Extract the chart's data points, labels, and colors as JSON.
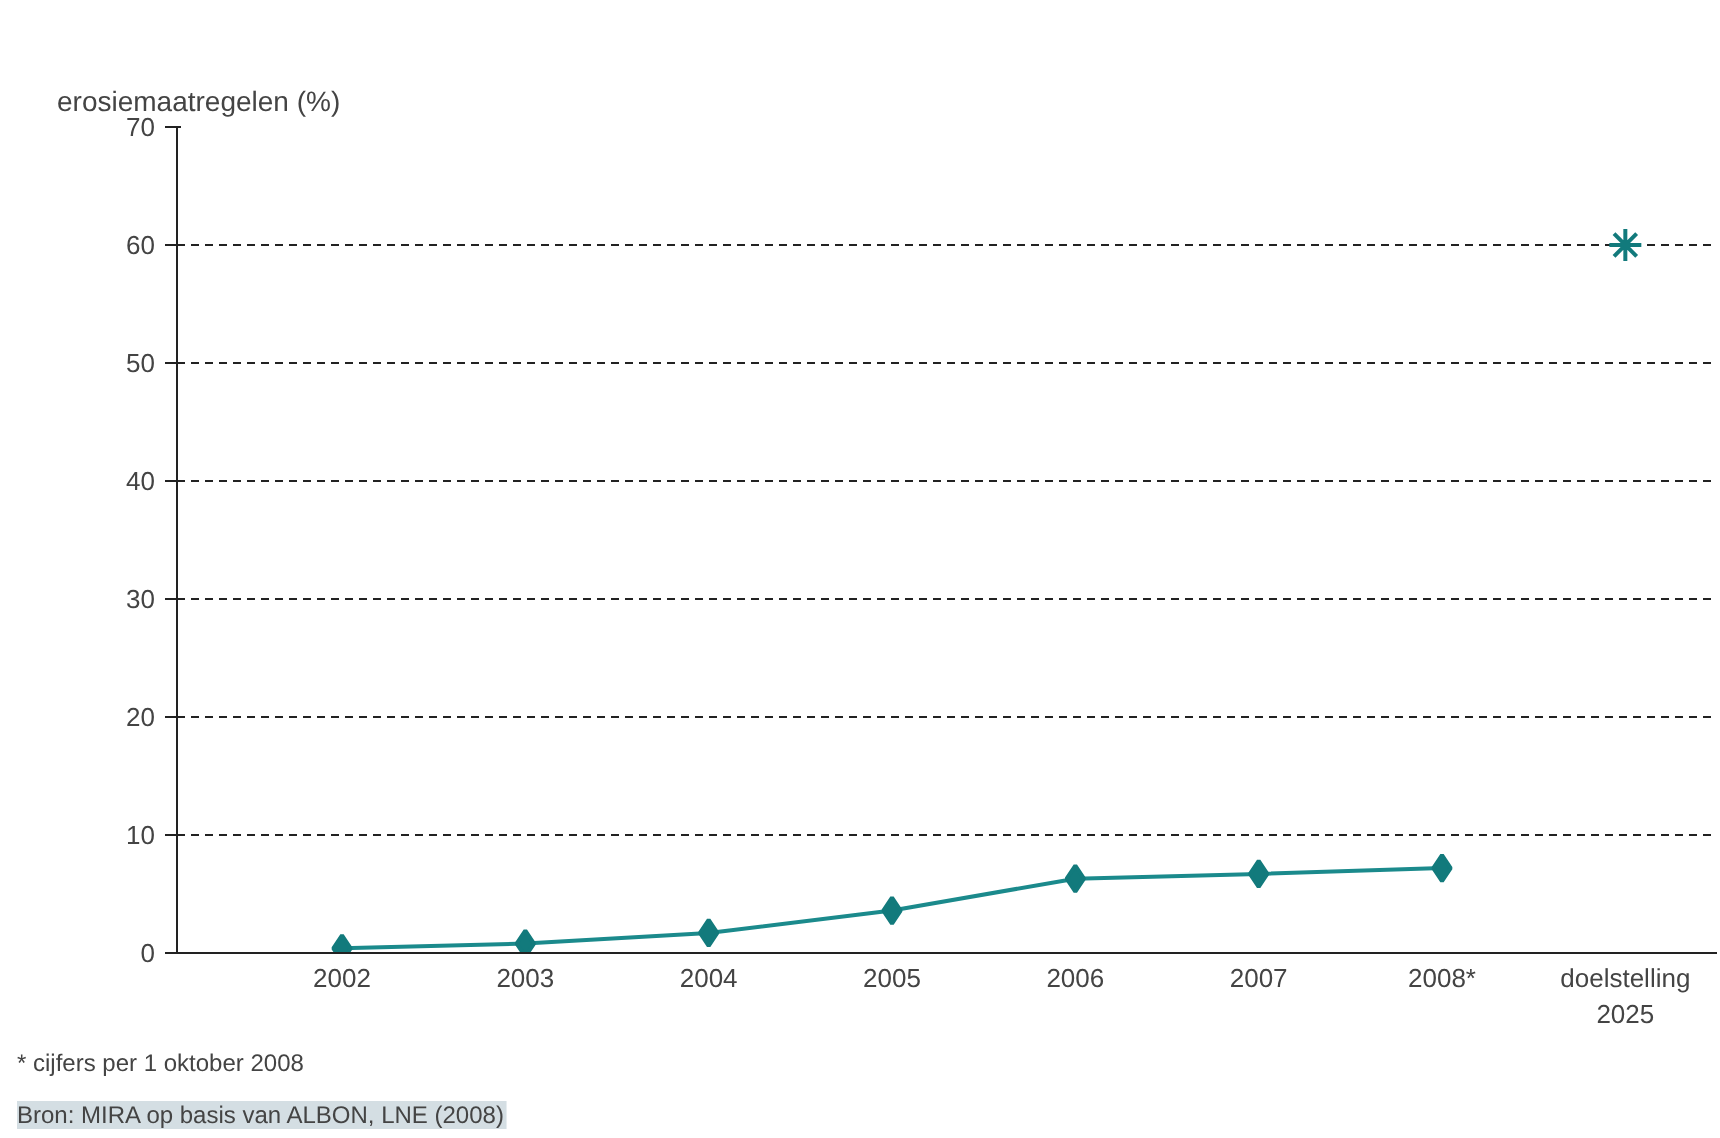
{
  "chart_data": {
    "type": "line",
    "ylabel": "erosiemaatregelen (%)",
    "categories": [
      "2002",
      "2003",
      "2004",
      "2005",
      "2006",
      "2007",
      "2008*",
      "doelstelling\n2025"
    ],
    "series": [
      {
        "color": "#1b8a8c",
        "marker": "diamond",
        "values": [
          0.4,
          0.8,
          1.7,
          3.6,
          6.3,
          6.7,
          7.2,
          null
        ]
      },
      {
        "type": "scatter",
        "color": "#1b8a8c",
        "marker": "cross",
        "values": [
          null,
          null,
          null,
          null,
          null,
          null,
          null,
          60
        ]
      }
    ],
    "ylim": [
      0,
      70
    ],
    "yticks": [
      0,
      10,
      20,
      30,
      40,
      50,
      60,
      70
    ],
    "grid": "y",
    "annotations": [
      "* cijfers per 1 oktober 2008",
      "Bron: MIRA op basis van ALBON, LNE (2008)"
    ]
  }
}
